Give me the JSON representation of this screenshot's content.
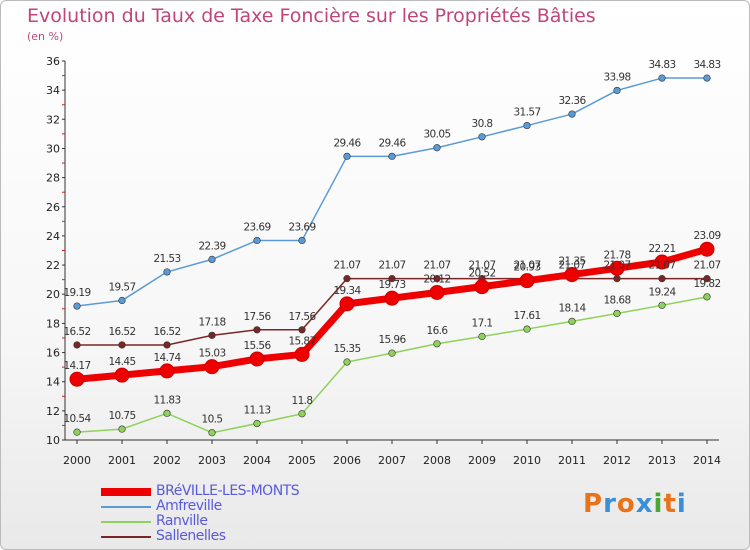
{
  "title": "Evolution du Taux de Taxe Foncière sur les Propriétés Bâties",
  "subtitle": "(en %)",
  "logo": {
    "text": "Proxiti",
    "colors": [
      "#e8731a",
      "#3b8fd6",
      "#e8731a",
      "#3b8fd6",
      "#4aa832",
      "#e8731a",
      "#3b8fd6"
    ]
  },
  "chart_data": {
    "type": "line",
    "x": [
      2000,
      2001,
      2002,
      2003,
      2004,
      2005,
      2006,
      2007,
      2008,
      2009,
      2010,
      2011,
      2012,
      2013,
      2014
    ],
    "ylim": [
      10,
      36
    ],
    "yticks": [
      10,
      12,
      14,
      16,
      18,
      20,
      22,
      24,
      26,
      28,
      30,
      32,
      34,
      36
    ],
    "grid": "none",
    "legend": "bottom-left",
    "series": [
      {
        "name": "Amfreville",
        "color": "#5b9bd5",
        "labels": [
          "19.19",
          "19.57",
          "21.53",
          "22.39",
          "23.69",
          "23.69",
          "29.46",
          "29.46",
          "30.05",
          "30.8",
          "31.57",
          "32.36",
          "33.98",
          "34.83",
          "34.83"
        ],
        "values": [
          19.19,
          19.57,
          21.53,
          22.39,
          23.69,
          23.69,
          29.46,
          29.46,
          30.05,
          30.8,
          31.57,
          32.36,
          33.98,
          34.83,
          34.83
        ]
      },
      {
        "name": "Sallenelles",
        "color": "#7a2626",
        "labels": [
          "16.52",
          "16.52",
          "16.52",
          "17.18",
          "17.56",
          "17.56",
          "21.07",
          "21.07",
          "21.07",
          "21.07",
          "21.07",
          "21.07",
          "21.07",
          "21.07",
          "21.07"
        ],
        "values": [
          16.52,
          16.52,
          16.52,
          17.18,
          17.56,
          17.56,
          21.07,
          21.07,
          21.07,
          21.07,
          21.07,
          21.07,
          21.07,
          21.07,
          21.07
        ]
      },
      {
        "name": "Ranville",
        "color": "#8fd15b",
        "labels": [
          "10.54",
          "10.75",
          "11.83",
          "10.5",
          "11.13",
          "11.8",
          "15.35",
          "15.96",
          "16.6",
          "17.1",
          "17.61",
          "18.14",
          "18.68",
          "19.24",
          "19.82"
        ],
        "values": [
          10.54,
          10.75,
          11.83,
          10.5,
          11.13,
          11.8,
          15.35,
          15.96,
          16.6,
          17.1,
          17.61,
          18.14,
          18.68,
          19.24,
          19.82
        ]
      },
      {
        "name": "BRéVILLE-LES-MONTS",
        "color": "#ee0000",
        "labels": [
          "14.17",
          "14.45",
          "14.74",
          "15.03",
          "15.56",
          "15.87",
          "19.34",
          "19.73",
          "20.12",
          "20.52",
          "20.93",
          "21.35",
          "21.78",
          "22.21",
          "23.09"
        ],
        "values": [
          14.17,
          14.45,
          14.74,
          15.03,
          15.56,
          15.87,
          19.34,
          19.73,
          20.12,
          20.52,
          20.93,
          21.35,
          21.78,
          22.21,
          23.09
        ]
      }
    ],
    "legend_order": [
      "BRéVILLE-LES-MONTS",
      "Amfreville",
      "Ranville",
      "Sallenelles"
    ]
  }
}
